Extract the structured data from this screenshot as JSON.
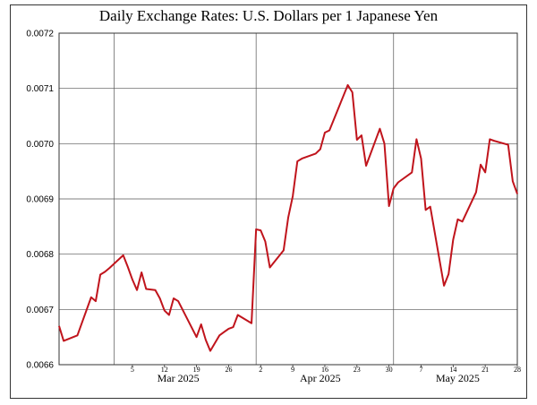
{
  "chart_data": {
    "type": "line",
    "title": "Daily Exchange Rates: U.S. Dollars per 1 Japanese Yen",
    "xlabel": "",
    "ylabel": "",
    "ylim": [
      0.0066,
      0.0072
    ],
    "y_ticks": [
      "0.0066",
      "0.0067",
      "0.0068",
      "0.0069",
      "0.0070",
      "0.0071",
      "0.0072"
    ],
    "x_range": [
      "2025-02-17",
      "2025-05-28"
    ],
    "x_tick_labels": [
      {
        "date": "2025-03-05",
        "label": "5"
      },
      {
        "date": "2025-03-12",
        "label": "12"
      },
      {
        "date": "2025-03-19",
        "label": "19"
      },
      {
        "date": "2025-03-26",
        "label": "26"
      },
      {
        "date": "2025-04-02",
        "label": "2"
      },
      {
        "date": "2025-04-09",
        "label": "9"
      },
      {
        "date": "2025-04-16",
        "label": "16"
      },
      {
        "date": "2025-04-23",
        "label": "23"
      },
      {
        "date": "2025-04-30",
        "label": "30"
      },
      {
        "date": "2025-05-07",
        "label": "7"
      },
      {
        "date": "2025-05-14",
        "label": "14"
      },
      {
        "date": "2025-05-21",
        "label": "21"
      },
      {
        "date": "2025-05-28",
        "label": "28"
      }
    ],
    "month_labels": [
      {
        "date": "2025-03-15",
        "label": "Mar 2025"
      },
      {
        "date": "2025-04-15",
        "label": "Apr 2025"
      },
      {
        "date": "2025-05-15",
        "label": "May 2025"
      }
    ],
    "month_boundaries": [
      "2025-03-01",
      "2025-04-01",
      "2025-05-01"
    ],
    "grid": true,
    "series": [
      {
        "color": "#c0141c",
        "points": [
          [
            "2025-02-17",
            0.00667
          ],
          [
            "2025-02-18",
            0.006643
          ],
          [
            "2025-02-21",
            0.006653
          ],
          [
            "2025-02-24",
            0.006722
          ],
          [
            "2025-02-25",
            0.006715
          ],
          [
            "2025-02-26",
            0.006763
          ],
          [
            "2025-02-27",
            0.006768
          ],
          [
            "2025-02-28",
            0.006775
          ],
          [
            "2025-03-03",
            0.006798
          ],
          [
            "2025-03-04",
            0.006777
          ],
          [
            "2025-03-05",
            0.006754
          ],
          [
            "2025-03-06",
            0.006735
          ],
          [
            "2025-03-07",
            0.006767
          ],
          [
            "2025-03-08",
            0.006737
          ],
          [
            "2025-03-10",
            0.006735
          ],
          [
            "2025-03-11",
            0.00672
          ],
          [
            "2025-03-12",
            0.006698
          ],
          [
            "2025-03-13",
            0.00669
          ],
          [
            "2025-03-14",
            0.00672
          ],
          [
            "2025-03-15",
            0.006715
          ],
          [
            "2025-03-19",
            0.00665
          ],
          [
            "2025-03-20",
            0.006673
          ],
          [
            "2025-03-21",
            0.006645
          ],
          [
            "2025-03-22",
            0.006625
          ],
          [
            "2025-03-24",
            0.006653
          ],
          [
            "2025-03-25",
            0.006659
          ],
          [
            "2025-03-26",
            0.006665
          ],
          [
            "2025-03-27",
            0.006668
          ],
          [
            "2025-03-28",
            0.00669
          ],
          [
            "2025-03-31",
            0.006675
          ],
          [
            "2025-04-01",
            0.006845
          ],
          [
            "2025-04-02",
            0.006843
          ],
          [
            "2025-04-03",
            0.006823
          ],
          [
            "2025-04-04",
            0.006776
          ],
          [
            "2025-04-07",
            0.006807
          ],
          [
            "2025-04-08",
            0.006866
          ],
          [
            "2025-04-09",
            0.006905
          ],
          [
            "2025-04-10",
            0.006968
          ],
          [
            "2025-04-11",
            0.006973
          ],
          [
            "2025-04-14",
            0.006982
          ],
          [
            "2025-04-15",
            0.00699
          ],
          [
            "2025-04-16",
            0.00702
          ],
          [
            "2025-04-17",
            0.007024
          ],
          [
            "2025-04-21",
            0.007106
          ],
          [
            "2025-04-22",
            0.007093
          ],
          [
            "2025-04-23",
            0.007007
          ],
          [
            "2025-04-24",
            0.007015
          ],
          [
            "2025-04-25",
            0.00696
          ],
          [
            "2025-04-28",
            0.007027
          ],
          [
            "2025-04-29",
            0.007
          ],
          [
            "2025-04-30",
            0.006887
          ],
          [
            "2025-05-01",
            0.006919
          ],
          [
            "2025-05-02",
            0.00693
          ],
          [
            "2025-05-05",
            0.006948
          ],
          [
            "2025-05-06",
            0.007008
          ],
          [
            "2025-05-07",
            0.006973
          ],
          [
            "2025-05-08",
            0.00688
          ],
          [
            "2025-05-09",
            0.006886
          ],
          [
            "2025-05-12",
            0.006743
          ],
          [
            "2025-05-13",
            0.006764
          ],
          [
            "2025-05-14",
            0.006826
          ],
          [
            "2025-05-15",
            0.006863
          ],
          [
            "2025-05-16",
            0.006859
          ],
          [
            "2025-05-19",
            0.006912
          ],
          [
            "2025-05-20",
            0.006962
          ],
          [
            "2025-05-21",
            0.006948
          ],
          [
            "2025-05-22",
            0.007008
          ],
          [
            "2025-05-23",
            0.007005
          ],
          [
            "2025-05-26",
            0.006998
          ],
          [
            "2025-05-27",
            0.006932
          ],
          [
            "2025-05-28",
            0.006909
          ]
        ]
      }
    ]
  }
}
